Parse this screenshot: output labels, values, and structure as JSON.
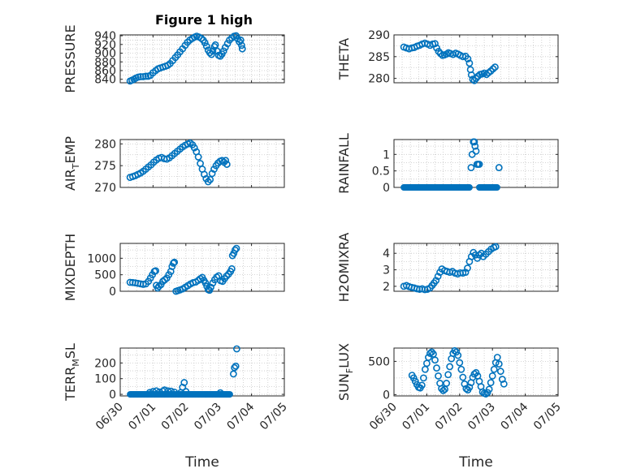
{
  "figure_title": "Figure 1 high",
  "colors": {
    "marker": "#0072BD",
    "axis": "#262626",
    "grid": "#c8c8c8"
  },
  "chart_data": [
    {
      "type": "scatter",
      "title": "Figure 1 high",
      "ylabel": "PRESSURE",
      "xlabel": "",
      "xlim": [
        0,
        5
      ],
      "ylim": [
        832,
        942
      ],
      "yticks": [
        840,
        860,
        880,
        900,
        920,
        940
      ],
      "xticklabels": [],
      "points": [
        [
          0.3,
          836
        ],
        [
          0.36,
          838
        ],
        [
          0.42,
          840
        ],
        [
          0.48,
          843
        ],
        [
          0.55,
          845
        ],
        [
          0.62,
          846
        ],
        [
          0.7,
          846
        ],
        [
          0.78,
          847
        ],
        [
          0.85,
          847
        ],
        [
          0.92,
          849
        ],
        [
          1.0,
          855
        ],
        [
          1.08,
          860
        ],
        [
          1.15,
          864
        ],
        [
          1.22,
          866
        ],
        [
          1.3,
          868
        ],
        [
          1.38,
          870
        ],
        [
          1.45,
          872
        ],
        [
          1.52,
          876
        ],
        [
          1.6,
          883
        ],
        [
          1.68,
          890
        ],
        [
          1.75,
          896
        ],
        [
          1.82,
          903
        ],
        [
          1.9,
          910
        ],
        [
          1.98,
          918
        ],
        [
          2.05,
          925
        ],
        [
          2.12,
          930
        ],
        [
          2.2,
          934
        ],
        [
          2.27,
          937
        ],
        [
          2.33,
          939
        ],
        [
          2.4,
          937
        ],
        [
          2.47,
          934
        ],
        [
          2.53,
          930
        ],
        [
          2.58,
          924
        ],
        [
          2.63,
          916
        ],
        [
          2.68,
          907
        ],
        [
          2.73,
          901
        ],
        [
          2.78,
          897
        ],
        [
          2.82,
          905
        ],
        [
          2.87,
          915
        ],
        [
          2.9,
          919
        ],
        [
          2.95,
          905
        ],
        [
          3.0,
          895
        ],
        [
          3.05,
          893
        ],
        [
          3.1,
          898
        ],
        [
          3.15,
          905
        ],
        [
          3.2,
          913
        ],
        [
          3.27,
          922
        ],
        [
          3.33,
          930
        ],
        [
          3.4,
          935
        ],
        [
          3.47,
          939
        ],
        [
          3.53,
          940
        ],
        [
          3.58,
          933
        ],
        [
          3.63,
          926
        ],
        [
          3.67,
          930
        ],
        [
          3.7,
          918
        ],
        [
          3.72,
          910
        ]
      ]
    },
    {
      "type": "scatter",
      "ylabel": "THETA",
      "xlabel": "",
      "xlim": [
        0,
        5
      ],
      "ylim": [
        279,
        290
      ],
      "yticks": [
        280,
        285,
        290
      ],
      "xticklabels": [],
      "points": [
        [
          0.3,
          287.2
        ],
        [
          0.38,
          287.0
        ],
        [
          0.46,
          286.8
        ],
        [
          0.54,
          287.0
        ],
        [
          0.62,
          287.1
        ],
        [
          0.7,
          287.4
        ],
        [
          0.78,
          287.6
        ],
        [
          0.86,
          287.9
        ],
        [
          0.94,
          288.1
        ],
        [
          1.02,
          287.9
        ],
        [
          1.1,
          287.6
        ],
        [
          1.18,
          287.9
        ],
        [
          1.25,
          288.0
        ],
        [
          1.3,
          287.0
        ],
        [
          1.36,
          286.2
        ],
        [
          1.42,
          285.7
        ],
        [
          1.48,
          285.3
        ],
        [
          1.54,
          285.4
        ],
        [
          1.6,
          285.6
        ],
        [
          1.66,
          285.9
        ],
        [
          1.72,
          285.7
        ],
        [
          1.8,
          285.5
        ],
        [
          1.88,
          285.8
        ],
        [
          1.95,
          285.6
        ],
        [
          2.02,
          285.3
        ],
        [
          2.1,
          285.0
        ],
        [
          2.18,
          285.1
        ],
        [
          2.25,
          284.5
        ],
        [
          2.3,
          283.5
        ],
        [
          2.33,
          282.0
        ],
        [
          2.36,
          280.8
        ],
        [
          2.4,
          279.8
        ],
        [
          2.45,
          279.5
        ],
        [
          2.5,
          280.0
        ],
        [
          2.56,
          280.5
        ],
        [
          2.62,
          280.9
        ],
        [
          2.68,
          281.0
        ],
        [
          2.75,
          281.2
        ],
        [
          2.82,
          280.9
        ],
        [
          2.88,
          281.3
        ],
        [
          2.95,
          281.7
        ],
        [
          3.02,
          282.2
        ],
        [
          3.08,
          282.6
        ]
      ]
    },
    {
      "type": "scatter",
      "ylabel": "AIR_TEMP",
      "xlabel": "",
      "xlim": [
        0,
        5
      ],
      "ylim": [
        270,
        281
      ],
      "yticks": [
        270,
        275,
        280
      ],
      "xticklabels": [],
      "points": [
        [
          0.3,
          272.3
        ],
        [
          0.38,
          272.5
        ],
        [
          0.46,
          272.7
        ],
        [
          0.54,
          273.0
        ],
        [
          0.62,
          273.3
        ],
        [
          0.7,
          273.7
        ],
        [
          0.78,
          274.2
        ],
        [
          0.86,
          274.7
        ],
        [
          0.94,
          275.2
        ],
        [
          1.02,
          275.8
        ],
        [
          1.1,
          276.3
        ],
        [
          1.18,
          276.7
        ],
        [
          1.26,
          276.9
        ],
        [
          1.34,
          276.6
        ],
        [
          1.42,
          276.5
        ],
        [
          1.5,
          276.8
        ],
        [
          1.58,
          277.3
        ],
        [
          1.66,
          277.8
        ],
        [
          1.74,
          278.3
        ],
        [
          1.82,
          278.8
        ],
        [
          1.9,
          279.3
        ],
        [
          1.98,
          279.7
        ],
        [
          2.06,
          280.0
        ],
        [
          2.13,
          280.2
        ],
        [
          2.2,
          279.8
        ],
        [
          2.26,
          279.1
        ],
        [
          2.32,
          278.2
        ],
        [
          2.38,
          277.0
        ],
        [
          2.44,
          275.5
        ],
        [
          2.5,
          274.2
        ],
        [
          2.56,
          273.0
        ],
        [
          2.62,
          272.0
        ],
        [
          2.68,
          271.3
        ],
        [
          2.74,
          271.8
        ],
        [
          2.8,
          273.2
        ],
        [
          2.86,
          274.2
        ],
        [
          2.92,
          275.0
        ],
        [
          2.98,
          275.6
        ],
        [
          3.04,
          276.0
        ],
        [
          3.1,
          276.2
        ],
        [
          3.16,
          275.8
        ],
        [
          3.21,
          276.2
        ],
        [
          3.25,
          275.3
        ]
      ]
    },
    {
      "type": "scatter",
      "ylabel": "RAINFALL",
      "xlabel": "",
      "xlim": [
        0,
        5
      ],
      "ylim": [
        0,
        1.45
      ],
      "yticks": [
        0,
        0.5,
        1
      ],
      "xticklabels": [],
      "zero_runs": [
        [
          0.3,
          2.3
        ],
        [
          2.6,
          3.15
        ]
      ],
      "points": [
        [
          2.38,
          1.0
        ],
        [
          2.42,
          1.38
        ],
        [
          2.45,
          1.38
        ],
        [
          2.47,
          1.25
        ],
        [
          2.5,
          1.1
        ],
        [
          2.53,
          0.7
        ],
        [
          2.56,
          0.7
        ],
        [
          2.6,
          0.7
        ],
        [
          2.35,
          0.6
        ],
        [
          3.2,
          0.6
        ]
      ]
    },
    {
      "type": "scatter",
      "ylabel": "MIXDEPTH",
      "xlabel": "",
      "xlim": [
        0,
        5
      ],
      "ylim": [
        0,
        1450
      ],
      "yticks": [
        0,
        500,
        1000
      ],
      "xticklabels": [],
      "points": [
        [
          0.3,
          270
        ],
        [
          0.38,
          265
        ],
        [
          0.46,
          255
        ],
        [
          0.54,
          240
        ],
        [
          0.62,
          225
        ],
        [
          0.7,
          210
        ],
        [
          0.78,
          225
        ],
        [
          0.86,
          300
        ],
        [
          0.92,
          400
        ],
        [
          0.98,
          500
        ],
        [
          1.04,
          600
        ],
        [
          1.08,
          620
        ],
        [
          1.1,
          180
        ],
        [
          1.14,
          100
        ],
        [
          1.18,
          150
        ],
        [
          1.24,
          200
        ],
        [
          1.3,
          300
        ],
        [
          1.36,
          350
        ],
        [
          1.42,
          400
        ],
        [
          1.48,
          500
        ],
        [
          1.54,
          600
        ],
        [
          1.58,
          750
        ],
        [
          1.62,
          850
        ],
        [
          1.65,
          880
        ],
        [
          1.7,
          0
        ],
        [
          1.76,
          20
        ],
        [
          1.82,
          40
        ],
        [
          1.9,
          70
        ],
        [
          1.98,
          120
        ],
        [
          2.06,
          170
        ],
        [
          2.14,
          220
        ],
        [
          2.22,
          260
        ],
        [
          2.3,
          280
        ],
        [
          2.38,
          330
        ],
        [
          2.44,
          380
        ],
        [
          2.5,
          420
        ],
        [
          2.55,
          330
        ],
        [
          2.6,
          250
        ],
        [
          2.64,
          150
        ],
        [
          2.68,
          50
        ],
        [
          2.72,
          30
        ],
        [
          2.76,
          120
        ],
        [
          2.82,
          250
        ],
        [
          2.88,
          350
        ],
        [
          2.94,
          430
        ],
        [
          3.0,
          470
        ],
        [
          3.06,
          320
        ],
        [
          3.12,
          300
        ],
        [
          3.18,
          380
        ],
        [
          3.24,
          460
        ],
        [
          3.3,
          520
        ],
        [
          3.36,
          600
        ],
        [
          3.4,
          680
        ],
        [
          3.42,
          1080
        ],
        [
          3.46,
          1150
        ],
        [
          3.5,
          1250
        ],
        [
          3.54,
          1300
        ]
      ]
    },
    {
      "type": "scatter",
      "ylabel": "H2OMIXRA",
      "xlabel": "",
      "xlim": [
        0,
        5
      ],
      "ylim": [
        1.7,
        4.6
      ],
      "yticks": [
        2,
        3,
        4
      ],
      "xticklabels": [],
      "points": [
        [
          0.3,
          2.0
        ],
        [
          0.38,
          2.05
        ],
        [
          0.46,
          1.98
        ],
        [
          0.54,
          1.93
        ],
        [
          0.62,
          1.9
        ],
        [
          0.7,
          1.85
        ],
        [
          0.78,
          1.82
        ],
        [
          0.86,
          1.85
        ],
        [
          0.94,
          1.8
        ],
        [
          1.02,
          1.82
        ],
        [
          1.1,
          1.9
        ],
        [
          1.16,
          2.05
        ],
        [
          1.22,
          2.2
        ],
        [
          1.28,
          2.35
        ],
        [
          1.34,
          2.6
        ],
        [
          1.4,
          2.85
        ],
        [
          1.46,
          3.05
        ],
        [
          1.54,
          2.95
        ],
        [
          1.62,
          2.9
        ],
        [
          1.7,
          2.85
        ],
        [
          1.78,
          2.9
        ],
        [
          1.86,
          2.8
        ],
        [
          1.94,
          2.75
        ],
        [
          2.02,
          2.82
        ],
        [
          2.1,
          2.8
        ],
        [
          2.18,
          2.85
        ],
        [
          2.24,
          3.1
        ],
        [
          2.3,
          3.5
        ],
        [
          2.36,
          3.8
        ],
        [
          2.42,
          4.05
        ],
        [
          2.48,
          3.9
        ],
        [
          2.54,
          3.7
        ],
        [
          2.6,
          3.9
        ],
        [
          2.66,
          4.0
        ],
        [
          2.72,
          3.8
        ],
        [
          2.8,
          3.95
        ],
        [
          2.88,
          4.1
        ],
        [
          2.96,
          4.25
        ],
        [
          3.04,
          4.35
        ],
        [
          3.1,
          4.4
        ]
      ]
    },
    {
      "type": "scatter",
      "ylabel": "TERR_MSL",
      "xlabel": "Time",
      "xlim": [
        0,
        5
      ],
      "ylim": [
        -10,
        295
      ],
      "yticks": [
        0,
        100,
        200
      ],
      "xticklabels": [
        "06/30",
        "07/01",
        "07/02",
        "07/03",
        "07/04",
        "07/05"
      ],
      "zero_runs": [
        [
          0.3,
          3.35
        ]
      ],
      "points": [
        [
          0.9,
          12
        ],
        [
          1.0,
          18
        ],
        [
          1.1,
          22
        ],
        [
          1.2,
          15
        ],
        [
          1.3,
          20
        ],
        [
          1.35,
          28
        ],
        [
          1.45,
          22
        ],
        [
          1.55,
          20
        ],
        [
          1.65,
          14
        ],
        [
          1.85,
          12
        ],
        [
          1.9,
          45
        ],
        [
          1.95,
          75
        ],
        [
          2.0,
          18
        ],
        [
          3.05,
          10
        ],
        [
          3.45,
          130
        ],
        [
          3.48,
          170
        ],
        [
          3.52,
          180
        ],
        [
          3.55,
          290
        ]
      ]
    },
    {
      "type": "scatter",
      "ylabel": "SUN_FLUX",
      "xlabel": "Time",
      "xlim": [
        0,
        5
      ],
      "ylim": [
        -20,
        700
      ],
      "yticks": [
        0,
        500
      ],
      "xticklabels": [
        "06/30",
        "07/01",
        "07/02",
        "07/03",
        "07/04",
        "07/05"
      ],
      "points": [
        [
          0.55,
          290
        ],
        [
          0.6,
          250
        ],
        [
          0.65,
          200
        ],
        [
          0.7,
          150
        ],
        [
          0.75,
          110
        ],
        [
          0.8,
          100
        ],
        [
          0.85,
          140
        ],
        [
          0.9,
          250
        ],
        [
          0.95,
          380
        ],
        [
          1.0,
          470
        ],
        [
          1.05,
          560
        ],
        [
          1.1,
          620
        ],
        [
          1.15,
          640
        ],
        [
          1.2,
          610
        ],
        [
          1.25,
          520
        ],
        [
          1.3,
          400
        ],
        [
          1.35,
          280
        ],
        [
          1.4,
          170
        ],
        [
          1.45,
          90
        ],
        [
          1.5,
          60
        ],
        [
          1.55,
          80
        ],
        [
          1.6,
          170
        ],
        [
          1.65,
          300
        ],
        [
          1.7,
          420
        ],
        [
          1.75,
          540
        ],
        [
          1.8,
          620
        ],
        [
          1.85,
          660
        ],
        [
          1.9,
          640
        ],
        [
          1.95,
          590
        ],
        [
          2.0,
          480
        ],
        [
          2.05,
          380
        ],
        [
          2.1,
          260
        ],
        [
          2.15,
          160
        ],
        [
          2.2,
          90
        ],
        [
          2.25,
          70
        ],
        [
          2.3,
          110
        ],
        [
          2.35,
          180
        ],
        [
          2.4,
          260
        ],
        [
          2.45,
          310
        ],
        [
          2.5,
          330
        ],
        [
          2.55,
          280
        ],
        [
          2.6,
          200
        ],
        [
          2.65,
          120
        ],
        [
          2.7,
          40
        ],
        [
          2.75,
          20
        ],
        [
          2.8,
          10
        ],
        [
          2.85,
          30
        ],
        [
          2.9,
          80
        ],
        [
          2.95,
          180
        ],
        [
          3.0,
          280
        ],
        [
          3.05,
          380
        ],
        [
          3.1,
          480
        ],
        [
          3.15,
          560
        ],
        [
          3.2,
          460
        ],
        [
          3.25,
          350
        ],
        [
          3.3,
          230
        ],
        [
          3.35,
          160
        ]
      ]
    }
  ]
}
